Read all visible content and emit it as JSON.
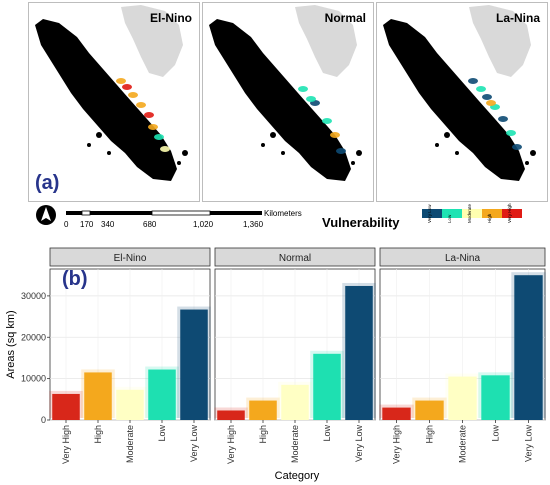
{
  "maps": {
    "panels": [
      {
        "title": "El-Nino"
      },
      {
        "title": "Normal"
      },
      {
        "title": "La-Nina"
      }
    ],
    "tag": "(a)"
  },
  "scale_bar": {
    "ticks": [
      "0",
      "170",
      "340",
      "680",
      "1,020",
      "1,360"
    ],
    "unit": "Kilometers"
  },
  "legend": {
    "title": "Vulnerability",
    "items": [
      {
        "label": "Very Low",
        "color": "#0d4a73"
      },
      {
        "label": "Low",
        "color": "#1de3b3"
      },
      {
        "label": "Moderate",
        "color": "#ffffb0"
      },
      {
        "label": "High",
        "color": "#f4a81d"
      },
      {
        "label": "Very High",
        "color": "#e01b14"
      }
    ]
  },
  "chart_data": {
    "type": "bar",
    "tag": "(b)",
    "categories": [
      "Very High",
      "High",
      "Moderate",
      "Low",
      "Very Low"
    ],
    "category_colors": [
      "#d8271a",
      "#f4a81d",
      "#ffffc4",
      "#1ee0b1",
      "#0e4a73"
    ],
    "facets": [
      {
        "name": "El-Nino",
        "values": [
          6300,
          11500,
          7300,
          12200,
          26700
        ]
      },
      {
        "name": "Normal",
        "values": [
          2300,
          4700,
          8500,
          16000,
          32400
        ]
      },
      {
        "name": "La-Nina",
        "values": [
          3000,
          4700,
          10500,
          10800,
          35000
        ]
      }
    ],
    "xlabel": "Category",
    "ylabel": "Areas (sq km)",
    "ylim": [
      0,
      36500
    ],
    "yticks": [
      0,
      10000,
      20000,
      30000
    ],
    "grid": true
  }
}
